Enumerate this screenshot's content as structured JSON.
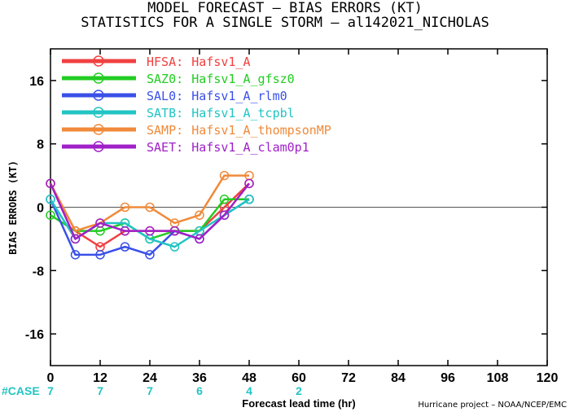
{
  "titles": {
    "line1": "MODEL FORECAST – BIAS ERRORS (KT)",
    "line2": "STATISTICS FOR A SINGLE STORM – al142021_NICHOLAS"
  },
  "credit": "Hurricane project – NOAA/NCEP/EMC",
  "case_label": "#CASE",
  "case_color": "#22c4c4",
  "chart_data": {
    "type": "line",
    "xlabel": "Forecast lead time (hr)",
    "ylabel": "BIAS ERRORS (KT)",
    "xlim": [
      0,
      120
    ],
    "ylim": [
      -20,
      20
    ],
    "x_ticks": [
      0,
      12,
      24,
      36,
      48,
      60,
      72,
      84,
      96,
      108,
      120
    ],
    "y_ticks": [
      -16,
      -8,
      0,
      8,
      16
    ],
    "zero_line": true,
    "grid": false,
    "legend_position": "top-left",
    "cases": [
      {
        "x": 0,
        "count": "7"
      },
      {
        "x": 12,
        "count": "7"
      },
      {
        "x": 24,
        "count": "7"
      },
      {
        "x": 36,
        "count": "6"
      },
      {
        "x": 48,
        "count": "4"
      },
      {
        "x": 60,
        "count": "2"
      }
    ],
    "series": [
      {
        "name": "HFSA:",
        "desc": "Hafsv1_A",
        "color": "#f04040",
        "x": [
          0,
          6,
          12,
          18,
          24,
          30,
          36,
          42,
          48
        ],
        "y": [
          3,
          -3,
          -5,
          -3,
          -3,
          -3,
          -3,
          0,
          3
        ]
      },
      {
        "name": "SAZ0:",
        "desc": "Hafsv1_A_gfsz0",
        "color": "#22cc22",
        "x": [
          0,
          6,
          12,
          18,
          24,
          30,
          36,
          42,
          48
        ],
        "y": [
          -1,
          -3,
          -3,
          -2,
          -4,
          -3,
          -3,
          1,
          1
        ]
      },
      {
        "name": "SAL0:",
        "desc": "Hafsv1_A_rlm0",
        "color": "#3a50e8",
        "x": [
          0,
          6,
          12,
          18,
          24,
          30,
          36,
          42,
          48
        ],
        "y": [
          1,
          -6,
          -6,
          -5,
          -6,
          -3,
          -4,
          -1,
          1
        ]
      },
      {
        "name": "SATB:",
        "desc": "Hafsv1_A_tcpbl",
        "color": "#22c4c4",
        "x": [
          0,
          6,
          12,
          18,
          24,
          30,
          36,
          42,
          48
        ],
        "y": [
          1,
          -4,
          -2,
          -2,
          -4,
          -5,
          -3,
          -1,
          1
        ]
      },
      {
        "name": "SAMP:",
        "desc": "Hafsv1_A_thompsonMP",
        "color": "#f08a3a",
        "x": [
          0,
          6,
          12,
          18,
          24,
          30,
          36,
          42,
          48
        ],
        "y": [
          3,
          -3,
          -2,
          0,
          0,
          -2,
          -1,
          4,
          4
        ]
      },
      {
        "name": "SAET:",
        "desc": "Hafsv1_A_clam0p1",
        "color": "#a020c8",
        "x": [
          0,
          6,
          12,
          18,
          24,
          30,
          36,
          42,
          48
        ],
        "y": [
          3,
          -4,
          -2,
          -3,
          -3,
          -3,
          -4,
          -1,
          3
        ]
      }
    ]
  }
}
